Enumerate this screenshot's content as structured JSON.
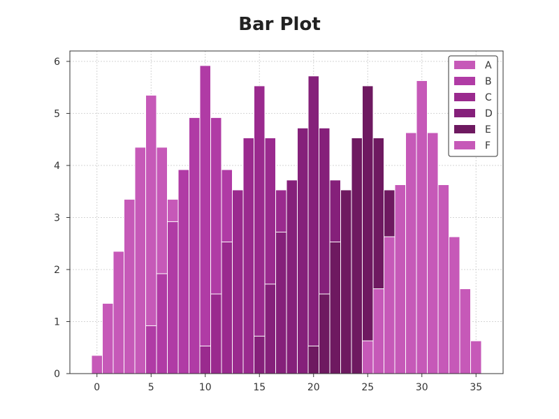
{
  "chart_data": {
    "type": "bar",
    "title": "Bar Plot",
    "xlabel": "",
    "ylabel": "",
    "xlim": [
      -2.5,
      37.5
    ],
    "ylim": [
      0,
      6.2
    ],
    "xticks": [
      0,
      5,
      10,
      15,
      20,
      25,
      30,
      35
    ],
    "yticks": [
      0,
      1,
      2,
      3,
      4,
      5,
      6
    ],
    "grid": true,
    "legend_position": "top-right",
    "bar_width": 1,
    "series": [
      {
        "name": "A",
        "color": "#c659b8",
        "x": [
          0,
          1,
          2,
          3,
          4,
          5,
          6,
          7
        ],
        "values": [
          0.35,
          1.35,
          2.35,
          3.35,
          4.35,
          5.35,
          4.35,
          3.35
        ]
      },
      {
        "name": "B",
        "color": "#b03ba5",
        "x": [
          5,
          6,
          7,
          8,
          9,
          10,
          11,
          12
        ],
        "values": [
          0.92,
          1.92,
          2.92,
          3.92,
          4.92,
          5.92,
          4.92,
          3.92
        ]
      },
      {
        "name": "C",
        "color": "#9a2a8e",
        "x": [
          10,
          11,
          12,
          13,
          14,
          15,
          16,
          17
        ],
        "values": [
          0.53,
          1.53,
          2.53,
          3.53,
          4.53,
          5.53,
          4.53,
          3.53
        ]
      },
      {
        "name": "D",
        "color": "#85207a",
        "x": [
          15,
          16,
          17,
          18,
          19,
          20,
          21,
          22
        ],
        "values": [
          0.72,
          1.72,
          2.72,
          3.72,
          4.72,
          5.72,
          4.72,
          3.72
        ]
      },
      {
        "name": "E",
        "color": "#6e1960",
        "x": [
          20,
          21,
          22,
          23,
          24,
          25,
          26,
          27
        ],
        "values": [
          0.53,
          1.53,
          2.53,
          3.53,
          4.53,
          5.53,
          4.53,
          3.53
        ]
      },
      {
        "name": "F",
        "color": "#c659b8",
        "x": [
          25,
          26,
          27,
          28,
          29,
          30,
          31,
          32,
          33,
          34,
          35
        ],
        "values": [
          0.63,
          1.63,
          2.63,
          3.63,
          4.63,
          5.63,
          4.63,
          3.63,
          2.63,
          1.63,
          0.63
        ]
      }
    ]
  }
}
